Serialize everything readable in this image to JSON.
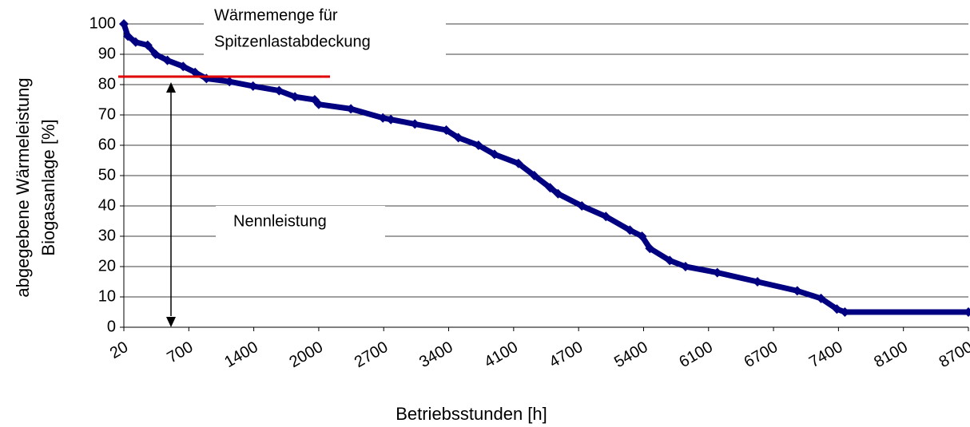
{
  "chart_data": {
    "type": "line",
    "y_label": [
      "abgegebene Wärmeleistung",
      "Biogasanlage [%]"
    ],
    "x_label": "Betriebsstunden [h]",
    "annotations": [
      [
        "Wärmemenge für",
        "Spitzenlastabdeckung"
      ],
      [
        "Nennleistung"
      ]
    ],
    "x": [
      20,
      62,
      144,
      269,
      352,
      476,
      641,
      768,
      890,
      1138,
      1392,
      1634,
      1780,
      1963,
      2000,
      2346,
      2691,
      2777,
      3036,
      3374,
      3504,
      3721,
      3894,
      4144,
      4291,
      4437,
      4510,
      4735,
      4994,
      5253,
      5383,
      5468,
      5682,
      5852,
      6181,
      6552,
      6956,
      7212,
      7383,
      7469,
      8700
    ],
    "series": [
      {
        "name": "Wärmeleistung",
        "color": "#000080",
        "values": [
          100,
          96,
          94,
          93,
          90,
          88,
          86,
          84,
          82,
          81,
          79.5,
          78,
          76,
          75,
          73.5,
          72,
          69,
          68.5,
          67,
          65,
          62.5,
          60,
          57,
          54,
          50,
          46,
          44,
          40,
          36.5,
          32,
          30,
          26,
          22,
          20,
          18,
          15,
          12,
          9.5,
          6,
          5,
          5
        ]
      }
    ],
    "xlim": [
      20,
      8700
    ],
    "xticks": [
      20,
      700,
      1400,
      2000,
      2700,
      3400,
      4100,
      4700,
      5400,
      6100,
      6700,
      7400,
      8100,
      8700
    ],
    "ylim": [
      0,
      100
    ],
    "yticks": [
      0,
      10,
      20,
      30,
      40,
      50,
      60,
      70,
      80,
      90,
      100
    ],
    "grid": true
  }
}
